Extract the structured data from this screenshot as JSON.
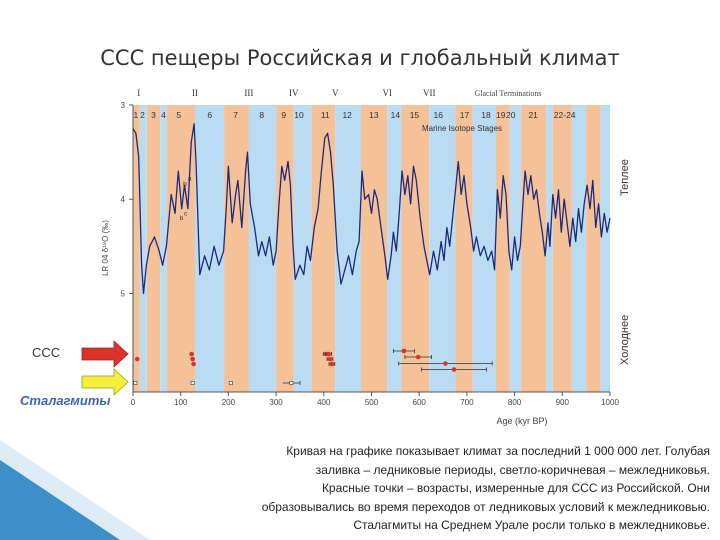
{
  "slide_title": "ССС пещеры Российская и глобальный климат",
  "label_warmer": "Теплее",
  "label_colder": "Холоднее",
  "label_ccc": "ССС",
  "label_stalagmites": "Сталагмиты",
  "caption_lines": [
    "Кривая на графике показывает климат за последний 1 000 000 лет. Голубая",
    "заливка – ледниковые периоды, светло-коричневая – межледниковья.",
    "Красные точки – возрасты, измеренные для ССС из Российской. Они",
    "образовывались во время переходов от ледниковых условий к межледниковью.",
    "Сталагмиты на Среднем Урале росли только в межледниковье."
  ],
  "colors": {
    "interglacial": "#f5c199",
    "glacial": "#b9dcf2",
    "curve": "#1e2a78",
    "ccc_points": "#d9342b",
    "ccc_arrow": "#d9342b",
    "stalagmite_arrow": "#f4ef3a",
    "corner_accent": "#3c8fc8"
  },
  "chart_data": {
    "type": "line",
    "xlabel": "Age (kyr BP)",
    "ylabel": "LR 04 δ¹⁸O (‰)",
    "xlim": [
      0,
      1000
    ],
    "ylim": [
      3,
      5.6
    ],
    "y_inverted": true,
    "x_ticks": [
      0,
      100,
      200,
      300,
      400,
      500,
      600,
      700,
      800,
      900,
      1000
    ],
    "y_ticks": [
      3,
      4,
      5
    ],
    "header_glacial_terminations": "Glacial Terminations",
    "header_marine_isotope_stages": "Marine Isotope Stages",
    "terminations": [
      {
        "label": "I",
        "x": 12
      },
      {
        "label": "II",
        "x": 130
      },
      {
        "label": "III",
        "x": 243
      },
      {
        "label": "IV",
        "x": 337
      },
      {
        "label": "V",
        "x": 424
      },
      {
        "label": "VI",
        "x": 533
      },
      {
        "label": "VII",
        "x": 621
      }
    ],
    "stages": [
      {
        "label": "1",
        "x": 6
      },
      {
        "label": "2",
        "x": 20
      },
      {
        "label": "3",
        "x": 43
      },
      {
        "label": "4",
        "x": 64
      },
      {
        "label": "5",
        "x": 96
      },
      {
        "label": "6",
        "x": 161
      },
      {
        "label": "7",
        "x": 215
      },
      {
        "label": "8",
        "x": 270
      },
      {
        "label": "9",
        "x": 316
      },
      {
        "label": "10",
        "x": 348
      },
      {
        "label": "11",
        "x": 403
      },
      {
        "label": "12",
        "x": 449
      },
      {
        "label": "13",
        "x": 505
      },
      {
        "label": "14",
        "x": 550
      },
      {
        "label": "15",
        "x": 590
      },
      {
        "label": "16",
        "x": 640
      },
      {
        "label": "17",
        "x": 695
      },
      {
        "label": "18",
        "x": 740
      },
      {
        "label": "19",
        "x": 771
      },
      {
        "label": "20",
        "x": 792
      },
      {
        "label": "21",
        "x": 839
      },
      {
        "label": "22-24",
        "x": 905
      }
    ],
    "bands": [
      {
        "kind": "interglacial",
        "x0": 0,
        "x1": 14
      },
      {
        "kind": "glacial",
        "x0": 14,
        "x1": 29
      },
      {
        "kind": "interglacial",
        "x0": 29,
        "x1": 57
      },
      {
        "kind": "glacial",
        "x0": 57,
        "x1": 71
      },
      {
        "kind": "interglacial",
        "x0": 71,
        "x1": 130
      },
      {
        "kind": "glacial",
        "x0": 130,
        "x1": 191
      },
      {
        "kind": "interglacial",
        "x0": 191,
        "x1": 243
      },
      {
        "kind": "glacial",
        "x0": 243,
        "x1": 300
      },
      {
        "kind": "interglacial",
        "x0": 300,
        "x1": 337
      },
      {
        "kind": "glacial",
        "x0": 337,
        "x1": 374
      },
      {
        "kind": "interglacial",
        "x0": 374,
        "x1": 424
      },
      {
        "kind": "glacial",
        "x0": 424,
        "x1": 478
      },
      {
        "kind": "interglacial",
        "x0": 478,
        "x1": 533
      },
      {
        "kind": "glacial",
        "x0": 533,
        "x1": 563
      },
      {
        "kind": "interglacial",
        "x0": 563,
        "x1": 621
      },
      {
        "kind": "glacial",
        "x0": 621,
        "x1": 676
      },
      {
        "kind": "interglacial",
        "x0": 676,
        "x1": 712
      },
      {
        "kind": "glacial",
        "x0": 712,
        "x1": 761
      },
      {
        "kind": "interglacial",
        "x0": 761,
        "x1": 790
      },
      {
        "kind": "glacial",
        "x0": 790,
        "x1": 814
      },
      {
        "kind": "interglacial",
        "x0": 814,
        "x1": 866
      },
      {
        "kind": "glacial",
        "x0": 866,
        "x1": 880
      },
      {
        "kind": "interglacial",
        "x0": 880,
        "x1": 920
      },
      {
        "kind": "glacial",
        "x0": 920,
        "x1": 950
      },
      {
        "kind": "interglacial",
        "x0": 950,
        "x1": 980
      },
      {
        "kind": "glacial",
        "x0": 980,
        "x1": 1000
      }
    ],
    "series": [
      {
        "points": [
          [
            0,
            3.25
          ],
          [
            6,
            3.3
          ],
          [
            12,
            3.55
          ],
          [
            18,
            4.7
          ],
          [
            22,
            5.0
          ],
          [
            28,
            4.7
          ],
          [
            35,
            4.5
          ],
          [
            45,
            4.4
          ],
          [
            55,
            4.55
          ],
          [
            62,
            4.7
          ],
          [
            70,
            4.5
          ],
          [
            80,
            3.95
          ],
          [
            88,
            4.15
          ],
          [
            95,
            3.7
          ],
          [
            102,
            4.1
          ],
          [
            108,
            3.85
          ],
          [
            115,
            4.1
          ],
          [
            122,
            3.4
          ],
          [
            128,
            3.2
          ],
          [
            132,
            3.6
          ],
          [
            140,
            4.8
          ],
          [
            150,
            4.6
          ],
          [
            160,
            4.75
          ],
          [
            170,
            4.5
          ],
          [
            180,
            4.7
          ],
          [
            190,
            4.55
          ],
          [
            196,
            4.05
          ],
          [
            200,
            3.65
          ],
          [
            208,
            4.25
          ],
          [
            215,
            3.95
          ],
          [
            220,
            3.8
          ],
          [
            228,
            4.3
          ],
          [
            236,
            3.7
          ],
          [
            240,
            3.5
          ],
          [
            246,
            4.05
          ],
          [
            255,
            4.3
          ],
          [
            263,
            4.6
          ],
          [
            270,
            4.45
          ],
          [
            278,
            4.6
          ],
          [
            286,
            4.4
          ],
          [
            294,
            4.7
          ],
          [
            300,
            4.55
          ],
          [
            306,
            4.05
          ],
          [
            312,
            3.65
          ],
          [
            318,
            3.8
          ],
          [
            325,
            3.6
          ],
          [
            330,
            3.85
          ],
          [
            335,
            4.45
          ],
          [
            340,
            4.85
          ],
          [
            350,
            4.7
          ],
          [
            358,
            4.8
          ],
          [
            365,
            4.5
          ],
          [
            372,
            4.65
          ],
          [
            380,
            4.3
          ],
          [
            388,
            4.1
          ],
          [
            395,
            3.7
          ],
          [
            402,
            3.35
          ],
          [
            408,
            3.3
          ],
          [
            414,
            3.5
          ],
          [
            420,
            3.85
          ],
          [
            428,
            4.55
          ],
          [
            436,
            4.9
          ],
          [
            444,
            4.75
          ],
          [
            452,
            4.6
          ],
          [
            460,
            4.8
          ],
          [
            468,
            4.55
          ],
          [
            474,
            4.45
          ],
          [
            480,
            3.7
          ],
          [
            486,
            4.0
          ],
          [
            494,
            3.95
          ],
          [
            500,
            4.15
          ],
          [
            506,
            3.9
          ],
          [
            512,
            4.0
          ],
          [
            520,
            4.3
          ],
          [
            528,
            4.6
          ],
          [
            534,
            4.85
          ],
          [
            541,
            4.6
          ],
          [
            546,
            4.35
          ],
          [
            552,
            4.55
          ],
          [
            558,
            4.15
          ],
          [
            564,
            3.7
          ],
          [
            570,
            3.95
          ],
          [
            576,
            3.75
          ],
          [
            582,
            4.05
          ],
          [
            588,
            3.65
          ],
          [
            594,
            3.8
          ],
          [
            602,
            4.2
          ],
          [
            610,
            4.5
          ],
          [
            616,
            4.65
          ],
          [
            622,
            4.8
          ],
          [
            630,
            4.55
          ],
          [
            638,
            4.75
          ],
          [
            646,
            4.45
          ],
          [
            652,
            4.65
          ],
          [
            658,
            4.3
          ],
          [
            664,
            4.5
          ],
          [
            670,
            4.2
          ],
          [
            676,
            3.9
          ],
          [
            682,
            3.6
          ],
          [
            688,
            3.95
          ],
          [
            694,
            3.75
          ],
          [
            700,
            4.05
          ],
          [
            708,
            4.3
          ],
          [
            714,
            4.55
          ],
          [
            720,
            4.4
          ],
          [
            728,
            4.6
          ],
          [
            736,
            4.5
          ],
          [
            744,
            4.65
          ],
          [
            752,
            4.55
          ],
          [
            758,
            4.75
          ],
          [
            764,
            3.9
          ],
          [
            770,
            4.2
          ],
          [
            776,
            3.75
          ],
          [
            782,
            3.95
          ],
          [
            788,
            4.55
          ],
          [
            794,
            4.75
          ],
          [
            800,
            4.4
          ],
          [
            806,
            4.65
          ],
          [
            812,
            4.5
          ],
          [
            818,
            4.0
          ],
          [
            822,
            3.7
          ],
          [
            828,
            3.95
          ],
          [
            834,
            3.75
          ],
          [
            840,
            4.0
          ],
          [
            846,
            3.9
          ],
          [
            852,
            4.15
          ],
          [
            858,
            4.35
          ],
          [
            864,
            4.6
          ],
          [
            870,
            4.25
          ],
          [
            874,
            4.5
          ],
          [
            880,
            3.95
          ],
          [
            886,
            4.2
          ],
          [
            892,
            3.9
          ],
          [
            898,
            4.35
          ],
          [
            904,
            4.0
          ],
          [
            910,
            4.25
          ],
          [
            916,
            4.5
          ],
          [
            922,
            4.2
          ],
          [
            928,
            4.45
          ],
          [
            934,
            4.1
          ],
          [
            940,
            4.35
          ],
          [
            946,
            4.05
          ],
          [
            952,
            3.85
          ],
          [
            958,
            4.1
          ],
          [
            964,
            3.8
          ],
          [
            970,
            4.3
          ],
          [
            976,
            4.05
          ],
          [
            982,
            4.4
          ],
          [
            988,
            4.15
          ],
          [
            994,
            4.35
          ],
          [
            1000,
            4.2
          ]
        ]
      }
    ],
    "ccc_ages": [
      {
        "x": 9,
        "row": 0,
        "err": 0
      },
      {
        "x": 123,
        "row": -1,
        "err": 0
      },
      {
        "x": 125,
        "row": 0,
        "err": 0
      },
      {
        "x": 127,
        "row": 1,
        "err": 0
      },
      {
        "x": 405,
        "row": -1,
        "err": 6
      },
      {
        "x": 410,
        "row": -1,
        "err": 6
      },
      {
        "x": 413,
        "row": 0,
        "err": 6
      },
      {
        "x": 417,
        "row": 1,
        "err": 6
      },
      {
        "x": 568,
        "row": -1.6,
        "err": 22
      },
      {
        "x": 598,
        "row": -0.4,
        "err": 28
      },
      {
        "x": 655,
        "row": 0.9,
        "err": 98
      },
      {
        "x": 673,
        "row": 2.1,
        "err": 68
      }
    ],
    "stalagmite_ages": [
      {
        "x": 5,
        "err": 0
      },
      {
        "x": 125,
        "err": 0
      },
      {
        "x": 205,
        "err": 0
      },
      {
        "x": 332,
        "err": 18
      }
    ],
    "point_annotations": [
      {
        "label": "a",
        "x": 115,
        "y": 3.8
      },
      {
        "label": "b",
        "x": 105,
        "y": 3.86
      },
      {
        "label": "c",
        "x": 107,
        "y": 4.17
      },
      {
        "label": "b",
        "x": 98,
        "y": 4.22
      }
    ]
  }
}
